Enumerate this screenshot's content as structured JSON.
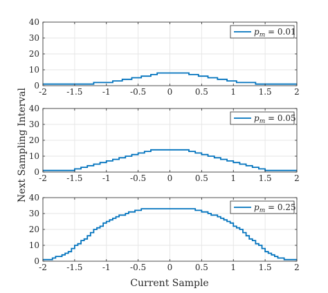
{
  "chart_data": {
    "type": "line",
    "ylabel": "Next Sampling Interval",
    "xlabel": "Current Sample",
    "accent_color": "#0072BD",
    "grid": true,
    "legend_position": "top-right",
    "panels": [
      {
        "legend": "p_m = 0.01",
        "legend_var": "p",
        "legend_sub": "m",
        "legend_rest": " = 0.01",
        "xlim": [
          -2,
          2
        ],
        "ylim": [
          0,
          40
        ],
        "xticks": [
          "-2",
          "-1.5",
          "-1",
          "-0.5",
          "0",
          "0.5",
          "1",
          "1.5",
          "2"
        ],
        "yticks": [
          "0",
          "10",
          "20",
          "30",
          "40"
        ],
        "x": [
          -2,
          -1.8,
          -1.65,
          -1.55,
          -1.45,
          -1.35,
          -1.2,
          -1.05,
          -0.9,
          -0.75,
          -0.6,
          -0.45,
          -0.3,
          -0.2,
          -0.1,
          0,
          0.1,
          0.2,
          0.3,
          0.45,
          0.6,
          0.75,
          0.9,
          1.05,
          1.2,
          1.35,
          1.45,
          1.55,
          1.65,
          1.8,
          2
        ],
        "y": [
          1,
          1,
          1,
          1,
          1,
          1,
          2,
          2,
          3,
          4,
          5,
          6,
          7,
          8,
          8,
          8,
          8,
          8,
          7,
          6,
          5,
          4,
          3,
          2,
          2,
          1,
          1,
          1,
          1,
          1,
          1
        ]
      },
      {
        "legend": "p_m = 0.05",
        "legend_var": "p",
        "legend_sub": "m",
        "legend_rest": " = 0.05",
        "xlim": [
          -2,
          2
        ],
        "ylim": [
          0,
          40
        ],
        "xticks": [
          "-2",
          "-1.5",
          "-1",
          "-0.5",
          "0",
          "0.5",
          "1",
          "1.5",
          "2"
        ],
        "yticks": [
          "0",
          "10",
          "20",
          "30",
          "40"
        ],
        "x": [
          -2,
          -1.7,
          -1.6,
          -1.5,
          -1.4,
          -1.3,
          -1.2,
          -1.1,
          -1,
          -0.9,
          -0.8,
          -0.7,
          -0.6,
          -0.5,
          -0.4,
          -0.3,
          -0.2,
          -0.1,
          0,
          0.1,
          0.2,
          0.3,
          0.4,
          0.5,
          0.6,
          0.7,
          0.8,
          0.9,
          1,
          1.1,
          1.2,
          1.3,
          1.4,
          1.5,
          1.6,
          1.7,
          2
        ],
        "y": [
          1,
          1,
          1,
          2,
          3,
          4,
          5,
          6,
          7,
          8,
          9,
          10,
          11,
          12,
          13,
          14,
          14,
          14,
          14,
          14,
          14,
          13,
          12,
          11,
          10,
          9,
          8,
          7,
          6,
          5,
          4,
          3,
          2,
          1,
          1,
          1,
          1
        ]
      },
      {
        "legend": "p_m = 0.25",
        "legend_var": "p",
        "legend_sub": "m",
        "legend_rest": " = 0.25",
        "xlim": [
          -2,
          2
        ],
        "ylim": [
          0,
          40
        ],
        "xticks": [
          "-2",
          "-1.5",
          "-1",
          "-0.5",
          "0",
          "0.5",
          "1",
          "1.5",
          "2"
        ],
        "yticks": [
          "0",
          "10",
          "20",
          "30",
          "40"
        ],
        "x": [
          -2,
          -1.85,
          -1.8,
          -1.7,
          -1.65,
          -1.6,
          -1.55,
          -1.5,
          -1.45,
          -1.4,
          -1.35,
          -1.3,
          -1.25,
          -1.2,
          -1.15,
          -1.1,
          -1.05,
          -1,
          -0.95,
          -0.9,
          -0.85,
          -0.8,
          -0.75,
          -0.7,
          -0.65,
          -0.6,
          -0.55,
          -0.5,
          -0.45,
          -0.4,
          -0.35,
          -0.3,
          -0.25,
          0.25,
          0.3,
          0.35,
          0.4,
          0.45,
          0.5,
          0.55,
          0.6,
          0.65,
          0.7,
          0.75,
          0.8,
          0.85,
          0.9,
          0.95,
          1,
          1.05,
          1.1,
          1.15,
          1.2,
          1.25,
          1.3,
          1.35,
          1.4,
          1.45,
          1.5,
          1.55,
          1.6,
          1.65,
          1.7,
          1.8,
          1.85,
          2
        ],
        "y": [
          1,
          2,
          3,
          4,
          5,
          6,
          8,
          10,
          11,
          13,
          14,
          16,
          18,
          20,
          21,
          22,
          24,
          25,
          26,
          27,
          28,
          29,
          29,
          30,
          31,
          31,
          32,
          32,
          33,
          33,
          33,
          33,
          33,
          33,
          33,
          33,
          32,
          32,
          31,
          31,
          30,
          29,
          29,
          28,
          27,
          26,
          25,
          24,
          22,
          21,
          20,
          18,
          16,
          14,
          13,
          11,
          10,
          8,
          6,
          5,
          4,
          3,
          2,
          1,
          1,
          1
        ]
      }
    ]
  }
}
